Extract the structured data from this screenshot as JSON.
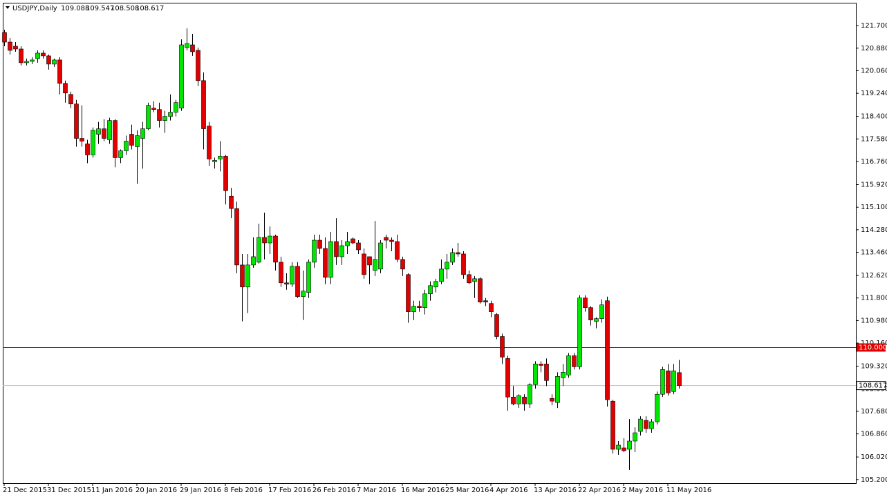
{
  "chart_data": {
    "type": "candlestick",
    "title": "USDJPY,Daily",
    "categories": [
      "21 Dec 2015",
      null,
      null,
      null,
      null,
      null,
      null,
      null,
      "31 Dec 2015",
      null,
      null,
      null,
      null,
      null,
      null,
      null,
      "11 Jan 2016",
      null,
      null,
      null,
      null,
      null,
      null,
      null,
      "20 Jan 2016",
      null,
      null,
      null,
      null,
      null,
      null,
      null,
      "29 Jan 2016",
      null,
      null,
      null,
      null,
      null,
      null,
      null,
      "8 Feb 2016",
      null,
      null,
      null,
      null,
      null,
      null,
      null,
      "17 Feb 2016",
      null,
      null,
      null,
      null,
      null,
      null,
      null,
      "26 Feb 2016",
      null,
      null,
      null,
      null,
      null,
      null,
      null,
      "7 Mar 2016",
      null,
      null,
      null,
      null,
      null,
      null,
      null,
      "16 Mar 2016",
      null,
      null,
      null,
      null,
      null,
      null,
      null,
      "25 Mar 2016",
      null,
      null,
      null,
      null,
      null,
      null,
      null,
      "4 Apr 2016",
      null,
      null,
      null,
      null,
      null,
      null,
      null,
      "13 Apr 2016",
      null,
      null,
      null,
      null,
      null,
      null,
      null,
      "22 Apr 2016",
      null,
      null,
      null,
      null,
      null,
      null,
      null,
      "2 May 2016",
      null,
      null,
      null,
      null,
      null,
      null,
      null,
      "11 May 2016",
      null,
      null
    ],
    "open": [
      121.45,
      121.1,
      120.95,
      120.85,
      120.35,
      120.4,
      120.5,
      120.7,
      120.6,
      120.3,
      120.45,
      119.6,
      119.2,
      118.85,
      117.6,
      117.4,
      117.0,
      117.75,
      117.95,
      117.55,
      118.25,
      116.9,
      117.15,
      117.75,
      117.3,
      117.6,
      117.95,
      118.7,
      118.65,
      118.25,
      118.4,
      118.55,
      118.7,
      120.9,
      121.0,
      120.8,
      119.7,
      118.05,
      116.75,
      116.85,
      116.95,
      115.5,
      115.05,
      113.0,
      112.2,
      113.0,
      113.1,
      114.0,
      113.8,
      114.05,
      113.1,
      112.35,
      112.3,
      112.95,
      111.85,
      112.0,
      113.1,
      113.9,
      113.6,
      112.55,
      113.85,
      113.3,
      113.7,
      113.95,
      113.8,
      113.4,
      113.3,
      112.8,
      112.85,
      114.0,
      113.9,
      113.85,
      113.2,
      112.65,
      111.3,
      111.5,
      111.45,
      111.95,
      112.2,
      112.4,
      112.85,
      113.1,
      113.45,
      113.4,
      112.65,
      112.4,
      112.5,
      111.7,
      111.6,
      111.2,
      110.4,
      109.6,
      108.2,
      107.95,
      108.2,
      107.95,
      108.65,
      109.4,
      109.4,
      108.15,
      108.0,
      108.9,
      109.0,
      109.7,
      109.3,
      111.8,
      111.45,
      110.95,
      111.05,
      111.7,
      108.05,
      106.3,
      106.35,
      106.3,
      106.6,
      106.95,
      107.35,
      107.05,
      107.3,
      108.3,
      109.15,
      108.4,
      109.088
    ],
    "high": [
      121.55,
      121.25,
      121.1,
      120.95,
      120.5,
      120.55,
      120.8,
      120.8,
      120.65,
      120.5,
      120.55,
      119.7,
      119.3,
      119.0,
      118.8,
      117.55,
      118.0,
      118.2,
      118.3,
      118.35,
      118.3,
      117.2,
      117.7,
      118.1,
      117.9,
      118.2,
      118.9,
      118.95,
      118.9,
      118.6,
      119.2,
      119.0,
      121.2,
      121.6,
      121.4,
      120.9,
      120.0,
      118.2,
      116.9,
      117.5,
      117.0,
      115.8,
      115.3,
      113.4,
      113.4,
      114.0,
      114.5,
      114.9,
      114.4,
      114.1,
      113.3,
      112.7,
      113.1,
      113.1,
      112.8,
      113.2,
      114.1,
      114.1,
      114.0,
      114.2,
      114.7,
      113.9,
      114.2,
      114.0,
      113.9,
      113.6,
      113.3,
      114.6,
      113.9,
      114.1,
      114.0,
      114.1,
      113.3,
      112.7,
      111.7,
      111.7,
      112.1,
      112.4,
      112.5,
      113.2,
      113.4,
      113.6,
      113.8,
      113.5,
      112.8,
      112.6,
      112.55,
      111.8,
      111.7,
      111.25,
      110.5,
      109.7,
      108.6,
      108.3,
      108.3,
      108.7,
      109.5,
      109.5,
      109.6,
      108.3,
      109.1,
      109.4,
      109.8,
      109.8,
      111.9,
      111.9,
      111.5,
      111.1,
      111.75,
      111.85,
      108.1,
      106.6,
      106.7,
      107.4,
      107.1,
      107.5,
      107.5,
      107.4,
      108.4,
      109.3,
      109.4,
      109.4,
      109.547
    ],
    "low": [
      120.95,
      120.65,
      120.75,
      120.25,
      120.25,
      120.3,
      120.35,
      120.5,
      120.1,
      120.2,
      119.2,
      118.9,
      118.7,
      117.3,
      117.3,
      116.7,
      116.9,
      117.4,
      117.5,
      117.4,
      116.55,
      116.7,
      117.0,
      117.2,
      115.95,
      116.5,
      117.9,
      118.55,
      118.0,
      117.8,
      118.25,
      118.4,
      118.6,
      120.8,
      120.6,
      119.5,
      117.2,
      116.6,
      116.5,
      116.4,
      115.2,
      114.7,
      112.7,
      110.95,
      111.25,
      112.9,
      113.05,
      113.2,
      113.4,
      112.8,
      112.2,
      112.1,
      112.2,
      111.8,
      111.0,
      111.8,
      112.9,
      113.4,
      112.3,
      112.3,
      113.0,
      113.0,
      113.4,
      113.75,
      113.4,
      112.5,
      112.3,
      112.6,
      112.7,
      113.6,
      113.5,
      113.1,
      112.6,
      110.9,
      111.0,
      111.3,
      111.2,
      111.7,
      112.0,
      112.3,
      112.5,
      113.0,
      113.3,
      112.5,
      112.3,
      111.8,
      111.6,
      111.5,
      111.1,
      110.3,
      109.4,
      107.7,
      107.9,
      107.8,
      107.7,
      107.8,
      108.5,
      109.1,
      108.6,
      107.9,
      107.8,
      108.6,
      108.9,
      109.2,
      109.2,
      111.3,
      110.8,
      110.7,
      110.9,
      107.85,
      106.15,
      106.1,
      106.2,
      105.55,
      106.2,
      106.8,
      106.9,
      106.9,
      107.2,
      108.2,
      108.25,
      108.3,
      108.508
    ],
    "close": [
      121.1,
      120.8,
      120.85,
      120.35,
      120.4,
      120.45,
      120.7,
      120.6,
      120.3,
      120.45,
      119.6,
      119.25,
      118.85,
      117.6,
      117.5,
      117.0,
      117.9,
      117.95,
      117.6,
      118.25,
      116.9,
      117.15,
      117.5,
      117.35,
      117.7,
      117.95,
      118.8,
      118.65,
      118.25,
      118.4,
      118.55,
      118.9,
      121.0,
      121.05,
      120.75,
      119.7,
      117.95,
      116.85,
      116.8,
      116.95,
      115.7,
      115.05,
      113.0,
      112.2,
      113.0,
      113.3,
      114.0,
      113.8,
      114.05,
      113.1,
      112.35,
      112.3,
      112.95,
      111.85,
      112.05,
      113.1,
      113.9,
      113.6,
      112.55,
      113.85,
      113.3,
      113.7,
      113.85,
      113.8,
      113.55,
      112.65,
      113.0,
      113.2,
      113.8,
      113.9,
      113.85,
      113.2,
      112.85,
      111.3,
      111.5,
      111.45,
      111.95,
      112.25,
      112.4,
      112.85,
      113.1,
      113.45,
      113.4,
      112.65,
      112.35,
      112.5,
      111.65,
      111.65,
      111.3,
      110.4,
      109.65,
      108.2,
      107.95,
      108.25,
      107.95,
      108.65,
      109.4,
      109.35,
      108.8,
      108.05,
      108.95,
      109.1,
      109.7,
      109.3,
      111.8,
      111.45,
      111.0,
      111.05,
      111.55,
      108.1,
      106.3,
      106.45,
      106.25,
      106.6,
      106.9,
      107.4,
      107.05,
      107.3,
      108.3,
      109.2,
      108.35,
      109.15,
      108.617
    ],
    "up_color": "#00e600",
    "down_color": "#e00000",
    "ylim": [
      105.07,
      122.53
    ],
    "yticks": [
      {
        "value": 121.7,
        "label": "121.700"
      },
      {
        "value": 120.88,
        "label": "120.880"
      },
      {
        "value": 120.06,
        "label": "120.060"
      },
      {
        "value": 119.24,
        "label": "119.240"
      },
      {
        "value": 118.4,
        "label": "118.400"
      },
      {
        "value": 117.58,
        "label": "117.580"
      },
      {
        "value": 116.76,
        "label": "116.760"
      },
      {
        "value": 115.92,
        "label": "115.920"
      },
      {
        "value": 115.1,
        "label": "115.100"
      },
      {
        "value": 114.28,
        "label": "114.280"
      },
      {
        "value": 113.46,
        "label": "113.460"
      },
      {
        "value": 112.62,
        "label": "112.620"
      },
      {
        "value": 111.8,
        "label": "111.800"
      },
      {
        "value": 110.98,
        "label": "110.980"
      },
      {
        "value": 110.16,
        "label": "110.160"
      },
      {
        "value": 109.32,
        "label": "109.320"
      },
      {
        "value": 108.5,
        "label": "108.500"
      },
      {
        "value": 107.68,
        "label": "107.680"
      },
      {
        "value": 106.86,
        "label": "106.860"
      },
      {
        "value": 106.02,
        "label": "106.020"
      },
      {
        "value": 105.2,
        "label": "105.200"
      }
    ],
    "level_line": {
      "value": 110,
      "label": "110.000",
      "color": "#e00000"
    }
  }
}
